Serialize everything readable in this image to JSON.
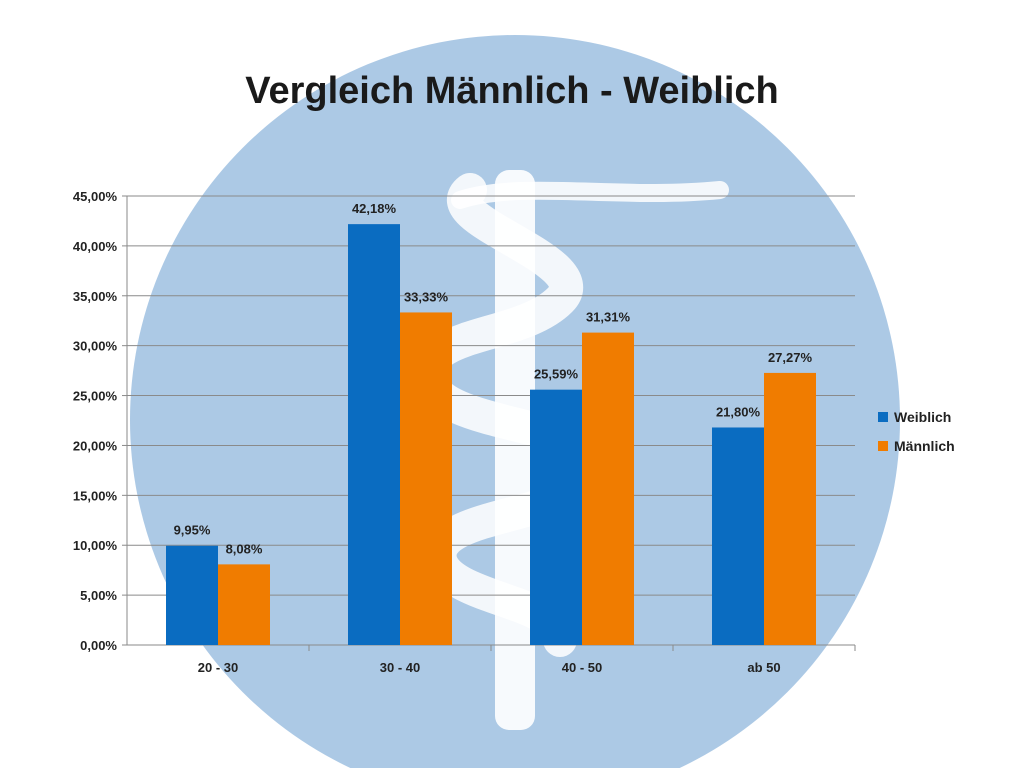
{
  "slide": {
    "background_emblem": "rod-of-asclepius-emblem"
  },
  "colors": {
    "weiblich": "#0a6cc1",
    "maennlich": "#f07c00",
    "emblem_circle": "#9dbfe0",
    "emblem_symbol": "#ffffff"
  },
  "chart_data": {
    "type": "bar",
    "title": "Vergleich Männlich - Weiblich",
    "categories": [
      "20 - 30",
      "30 - 40",
      "40 - 50",
      "ab 50"
    ],
    "series": [
      {
        "name": "Weiblich",
        "values": [
          9.95,
          42.18,
          25.59,
          21.8
        ],
        "labels": [
          "9,95%",
          "42,18%",
          "25,59%",
          "21,80%"
        ]
      },
      {
        "name": "Männlich",
        "values": [
          8.08,
          33.33,
          31.31,
          27.27
        ],
        "labels": [
          "8,08%",
          "33,33%",
          "31,31%",
          "27,27%"
        ]
      }
    ],
    "ylim": [
      0,
      45
    ],
    "yticks": [
      0,
      5,
      10,
      15,
      20,
      25,
      30,
      35,
      40,
      45
    ],
    "ytick_labels": [
      "0,00%",
      "5,00%",
      "10,00%",
      "15,00%",
      "20,00%",
      "25,00%",
      "30,00%",
      "35,00%",
      "40,00%",
      "45,00%"
    ],
    "grid": true,
    "legend_position": "right"
  }
}
